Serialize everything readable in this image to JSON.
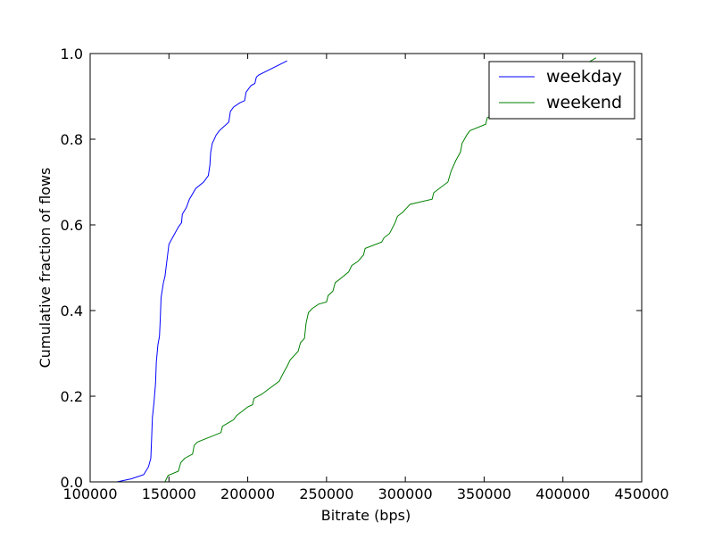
{
  "chart_data": {
    "type": "line",
    "title": "",
    "xlabel": "Bitrate (bps)",
    "ylabel": "Cumulative fraction of flows",
    "xlim": [
      100000,
      450000
    ],
    "ylim": [
      0.0,
      1.0
    ],
    "xticks": [
      100000,
      150000,
      200000,
      250000,
      300000,
      350000,
      400000,
      450000
    ],
    "xtick_labels": [
      "100000",
      "150000",
      "200000",
      "250000",
      "300000",
      "350000",
      "400000",
      "450000"
    ],
    "yticks": [
      0.0,
      0.2,
      0.4,
      0.6,
      0.8,
      1.0
    ],
    "ytick_labels": [
      "0.0",
      "0.2",
      "0.4",
      "0.6",
      "0.8",
      "1.0"
    ],
    "grid": false,
    "legend": "top-right",
    "colors": {
      "weekday": "#0000ff",
      "weekend": "#008000"
    },
    "series": [
      {
        "name": "weekday",
        "points": [
          [
            117000,
            0.0
          ],
          [
            126000,
            0.007
          ],
          [
            134000,
            0.017
          ],
          [
            137000,
            0.035
          ],
          [
            138500,
            0.055
          ],
          [
            139000,
            0.1
          ],
          [
            139500,
            0.15
          ],
          [
            140500,
            0.185
          ],
          [
            141500,
            0.23
          ],
          [
            142000,
            0.28
          ],
          [
            143000,
            0.32
          ],
          [
            144000,
            0.34
          ],
          [
            144500,
            0.38
          ],
          [
            145000,
            0.43
          ],
          [
            146500,
            0.465
          ],
          [
            147500,
            0.48
          ],
          [
            148500,
            0.51
          ],
          [
            149000,
            0.525
          ],
          [
            150000,
            0.555
          ],
          [
            153000,
            0.575
          ],
          [
            156000,
            0.595
          ],
          [
            158000,
            0.605
          ],
          [
            158500,
            0.625
          ],
          [
            161000,
            0.64
          ],
          [
            163000,
            0.66
          ],
          [
            167000,
            0.685
          ],
          [
            172000,
            0.7
          ],
          [
            175000,
            0.715
          ],
          [
            176000,
            0.74
          ],
          [
            176500,
            0.77
          ],
          [
            177500,
            0.79
          ],
          [
            180000,
            0.81
          ],
          [
            182000,
            0.82
          ],
          [
            188000,
            0.84
          ],
          [
            189000,
            0.865
          ],
          [
            191000,
            0.875
          ],
          [
            195000,
            0.885
          ],
          [
            198000,
            0.89
          ],
          [
            199000,
            0.91
          ],
          [
            200000,
            0.915
          ],
          [
            202000,
            0.925
          ],
          [
            204500,
            0.93
          ],
          [
            205500,
            0.945
          ],
          [
            207000,
            0.95
          ],
          [
            225000,
            0.983
          ]
        ]
      },
      {
        "name": "weekend",
        "points": [
          [
            147500,
            0.0
          ],
          [
            149500,
            0.015
          ],
          [
            156000,
            0.025
          ],
          [
            157500,
            0.045
          ],
          [
            160000,
            0.055
          ],
          [
            165000,
            0.065
          ],
          [
            166000,
            0.085
          ],
          [
            168000,
            0.093
          ],
          [
            183000,
            0.115
          ],
          [
            184000,
            0.13
          ],
          [
            191000,
            0.145
          ],
          [
            193000,
            0.155
          ],
          [
            200000,
            0.175
          ],
          [
            203000,
            0.18
          ],
          [
            204000,
            0.195
          ],
          [
            209000,
            0.205
          ],
          [
            220000,
            0.235
          ],
          [
            222000,
            0.25
          ],
          [
            225000,
            0.27
          ],
          [
            227000,
            0.285
          ],
          [
            232000,
            0.305
          ],
          [
            233500,
            0.325
          ],
          [
            236000,
            0.335
          ],
          [
            237000,
            0.37
          ],
          [
            238500,
            0.395
          ],
          [
            241000,
            0.405
          ],
          [
            245000,
            0.415
          ],
          [
            250000,
            0.42
          ],
          [
            251000,
            0.435
          ],
          [
            254000,
            0.445
          ],
          [
            255500,
            0.465
          ],
          [
            259000,
            0.475
          ],
          [
            264000,
            0.49
          ],
          [
            266000,
            0.505
          ],
          [
            270000,
            0.515
          ],
          [
            273500,
            0.53
          ],
          [
            274500,
            0.545
          ],
          [
            285000,
            0.56
          ],
          [
            286500,
            0.57
          ],
          [
            290000,
            0.58
          ],
          [
            293500,
            0.605
          ],
          [
            295000,
            0.62
          ],
          [
            298500,
            0.63
          ],
          [
            303000,
            0.648
          ],
          [
            317000,
            0.66
          ],
          [
            318000,
            0.675
          ],
          [
            327000,
            0.7
          ],
          [
            329000,
            0.725
          ],
          [
            332000,
            0.75
          ],
          [
            335000,
            0.77
          ],
          [
            336000,
            0.79
          ],
          [
            339000,
            0.81
          ],
          [
            341000,
            0.82
          ],
          [
            351000,
            0.835
          ],
          [
            352000,
            0.85
          ],
          [
            365000,
            0.875
          ],
          [
            366000,
            0.9
          ],
          [
            375000,
            0.915
          ],
          [
            388000,
            0.925
          ],
          [
            390000,
            0.935
          ],
          [
            405000,
            0.955
          ],
          [
            421000,
            0.99
          ]
        ]
      }
    ]
  }
}
